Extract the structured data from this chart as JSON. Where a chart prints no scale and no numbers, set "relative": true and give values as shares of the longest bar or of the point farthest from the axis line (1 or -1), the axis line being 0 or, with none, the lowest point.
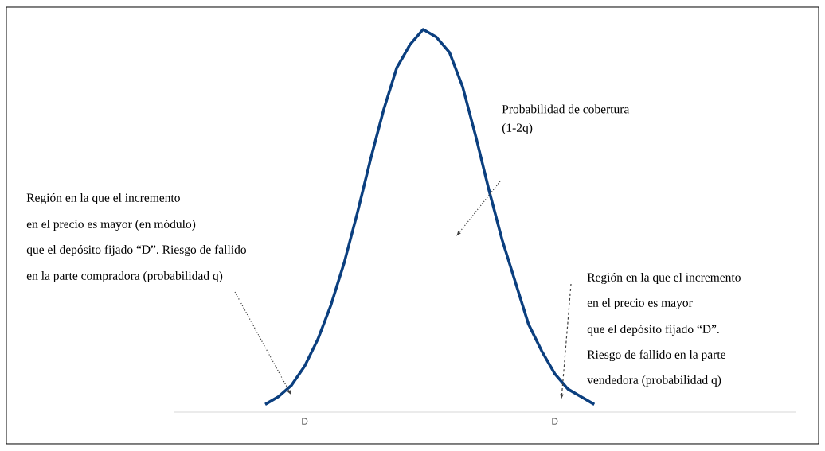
{
  "chart_data": {
    "type": "line",
    "relative": true,
    "categories": [
      null,
      null,
      null,
      "D",
      null,
      null,
      null,
      null,
      null,
      null,
      null,
      null,
      null,
      null,
      null,
      null,
      null,
      null,
      null,
      null,
      null,
      null,
      "D",
      null,
      null,
      null
    ],
    "series": [
      {
        "color": "#0b3f7f",
        "values": [
          0.02,
          0.04,
          0.07,
          0.12,
          0.19,
          0.28,
          0.39,
          0.52,
          0.66,
          0.79,
          0.9,
          0.96,
          1.0,
          0.98,
          0.94,
          0.85,
          0.72,
          0.58,
          0.45,
          0.34,
          0.23,
          0.16,
          0.1,
          0.06,
          0.04,
          0.02
        ]
      }
    ],
    "tick_labels": "x",
    "annotations": [
      "Región en la que el incremento",
      "en el precio es mayor (en módulo)",
      "que el depósito fijado “D”. Riesgo de fallido",
      "en la parte compradora (probabilidad q)",
      "Probabilidad de cobertura",
      "(1-2q)",
      "Región en la que el incremento",
      "en el precio es mayor",
      "que el depósito fijado “D”.",
      "Riesgo de fallido en la parte",
      "vendedora (probabilidad q)"
    ]
  }
}
